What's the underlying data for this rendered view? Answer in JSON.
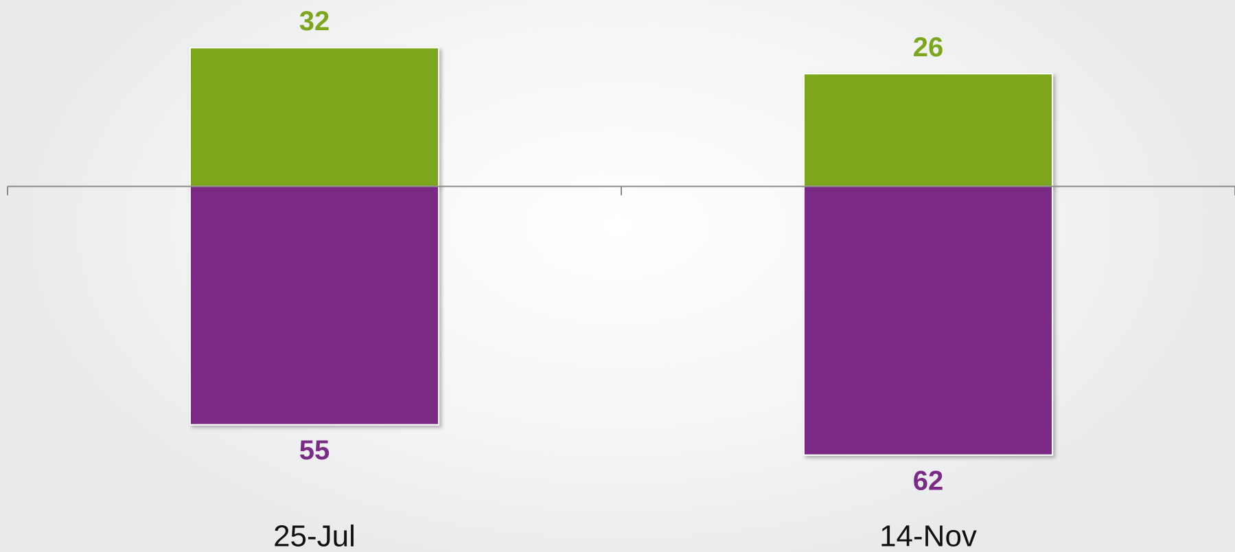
{
  "chart_data": {
    "type": "bar",
    "categories": [
      "25-Jul",
      "14-Nov"
    ],
    "series": [
      {
        "color": "#7ca61e",
        "values": [
          32,
          26
        ]
      },
      {
        "color": "#7a2b85",
        "values": [
          -55,
          -62
        ],
        "value_labels": [
          "55",
          "62"
        ]
      }
    ],
    "ylim": [
      -85,
      43
    ],
    "legend": false,
    "grid": false
  }
}
